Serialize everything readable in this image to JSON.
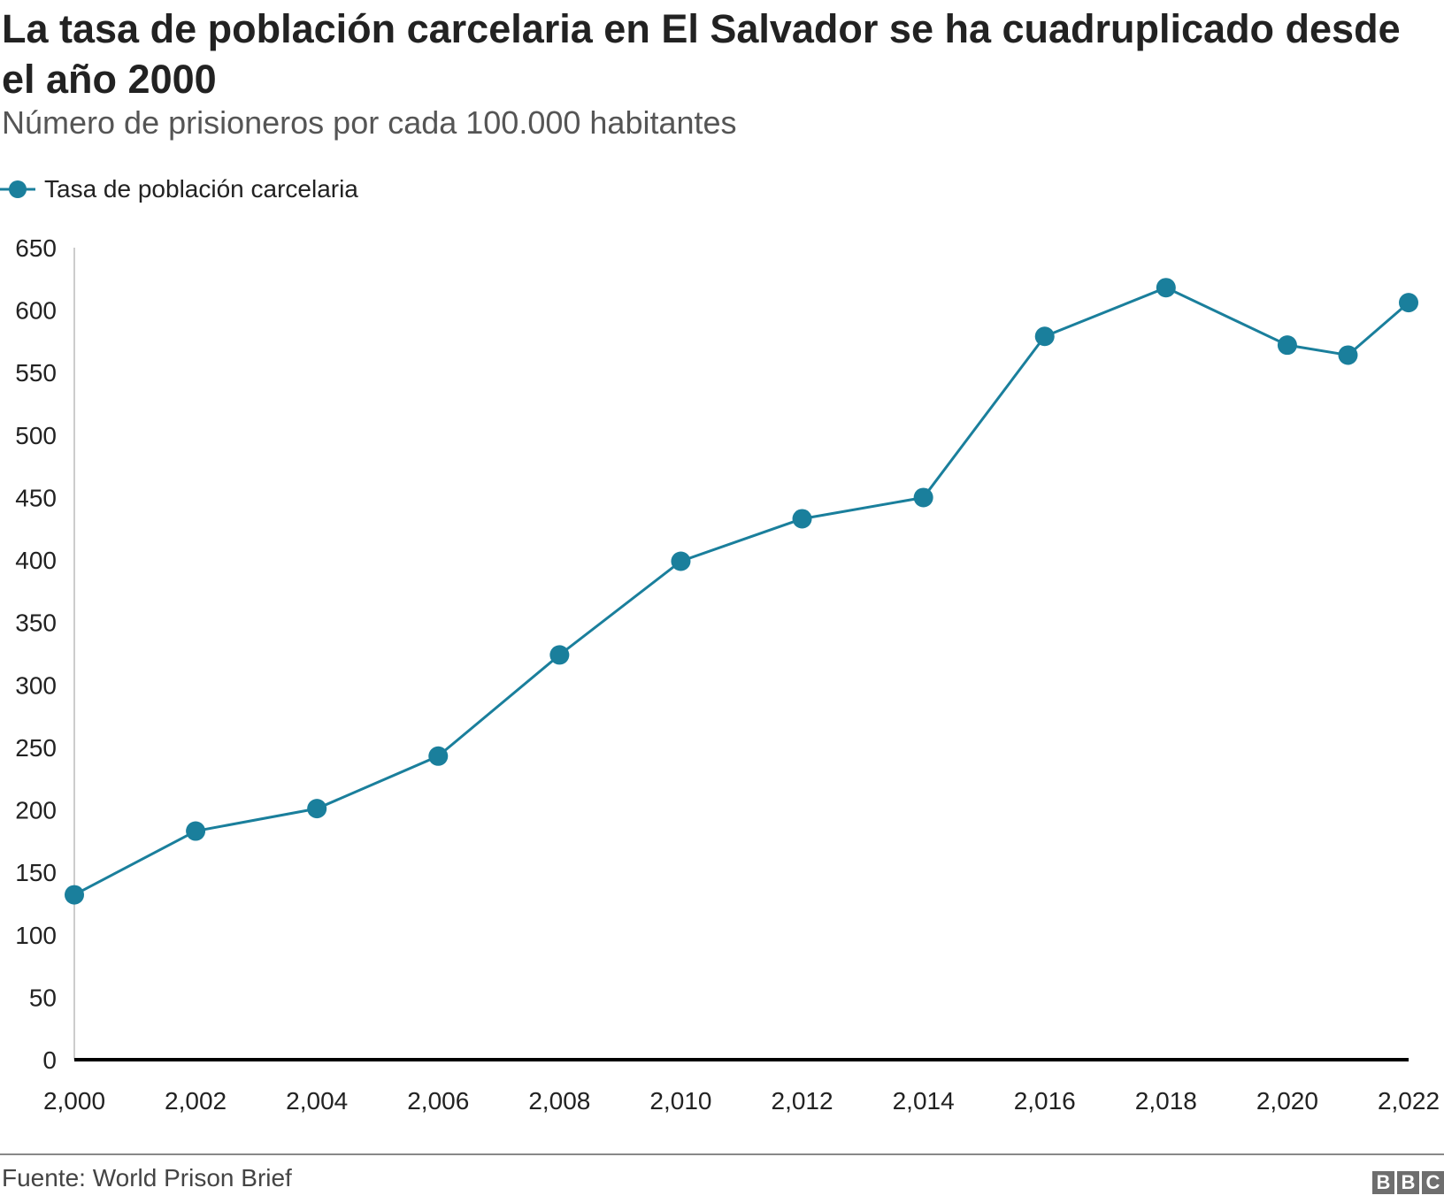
{
  "title": "La tasa de población carcelaria en El Salvador se ha cuadruplicado desde el año 2000",
  "subtitle": "Número de prisioneros por cada 100.000 habitantes",
  "source": "Fuente: World Prison Brief",
  "logo": "BBC",
  "colors": {
    "series": "#1a7f9c",
    "axis": "#000000",
    "text": "#222222"
  },
  "chart_data": {
    "type": "line",
    "title": "La tasa de población carcelaria en El Salvador se ha cuadruplicado desde el año 2000",
    "subtitle": "Número de prisioneros por cada 100.000 habitantes",
    "xlabel": "",
    "ylabel": "",
    "ylim": [
      0,
      650
    ],
    "xlim": [
      2000,
      2022
    ],
    "yticks": [
      "0",
      "50",
      "100",
      "150",
      "200",
      "250",
      "300",
      "350",
      "400",
      "450",
      "500",
      "550",
      "600",
      "650"
    ],
    "xticks": [
      "2,000",
      "2,002",
      "2,004",
      "2,006",
      "2,008",
      "2,010",
      "2,012",
      "2,014",
      "2,016",
      "2,018",
      "2,020",
      "2,022"
    ],
    "grid": false,
    "legend": "top-left",
    "series": [
      {
        "name": "Tasa de población carcelaria",
        "x": [
          2000,
          2002,
          2004,
          2006,
          2008,
          2010,
          2012,
          2014,
          2016,
          2018,
          2020,
          2021,
          2022
        ],
        "values": [
          132,
          183,
          201,
          243,
          324,
          399,
          433,
          450,
          579,
          618,
          572,
          564,
          606
        ]
      }
    ]
  }
}
